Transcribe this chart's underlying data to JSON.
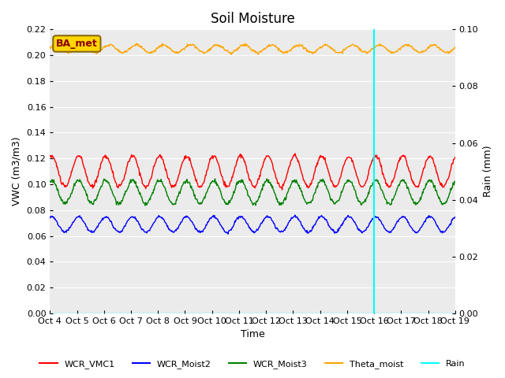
{
  "title": "Soil Moisture",
  "ylabel_left": "VWC (m3/m3)",
  "ylabel_right": "Rain (mm)",
  "xlabel": "Time",
  "annotation_text": "BA_met",
  "annotation_color": "#8B0000",
  "annotation_bg": "#FFD700",
  "annotation_edge": "#8B6914",
  "xlim_days": [
    0,
    15
  ],
  "ylim_left": [
    0.0,
    0.22
  ],
  "ylim_right": [
    0.0,
    0.1
  ],
  "x_tick_labels": [
    "Oct 4",
    "Oct 5",
    "Oct 6",
    "Oct 7",
    "Oct 8",
    "Oct 9",
    "Oct 10",
    "Oct 11",
    "Oct 12",
    "Oct 13",
    "Oct 14",
    "Oct 15",
    "Oct 16",
    "Oct 17",
    "Oct 18",
    "Oct 19"
  ],
  "vline_pos": 12.0,
  "vline_color": "cyan",
  "background_color": "#ebebeb",
  "red_base": 0.11,
  "red_amp": 0.012,
  "blue_base": 0.069,
  "blue_amp": 0.006,
  "green_base": 0.094,
  "green_amp": 0.009,
  "orange_base": 0.205,
  "orange_amp": 0.003,
  "grid_color": "white",
  "tick_fontsize": 8,
  "title_fontsize": 12
}
